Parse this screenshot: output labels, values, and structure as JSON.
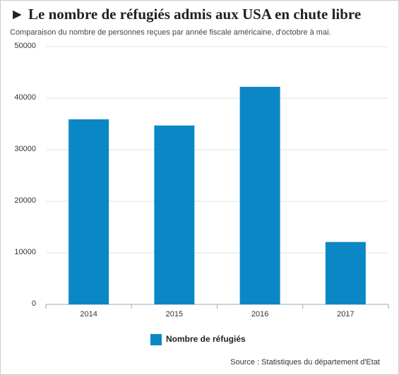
{
  "chart_data": {
    "type": "bar",
    "title": "► Le nombre de réfugiés admis aux USA en chute libre",
    "subtitle": "Comparaison du nombre de personnes reçues par année fiscale américaine, d'octobre à mai.",
    "categories": [
      "2014",
      "2015",
      "2016",
      "2017"
    ],
    "series": [
      {
        "name": "Nombre de réfugiés",
        "color": "#0c87c5",
        "values": [
          35900,
          34700,
          42200,
          12100
        ]
      }
    ],
    "ylim": [
      0,
      50000
    ],
    "yticks": [
      0,
      10000,
      20000,
      30000,
      40000,
      50000
    ],
    "grid": true,
    "legend": "bottom",
    "source": "Source : Statistiques du département d'Etat"
  }
}
